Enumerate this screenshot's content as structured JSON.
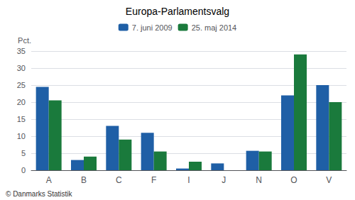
{
  "chart_data": {
    "type": "bar",
    "title": "Europa-Parlamentsvalg",
    "categories": [
      "A",
      "B",
      "C",
      "F",
      "I",
      "J",
      "N",
      "O",
      "V"
    ],
    "series": [
      {
        "name": "7. juni 2009",
        "color": "#1f5fa6",
        "values": [
          24.5,
          3.0,
          13.0,
          11.0,
          0.5,
          2.0,
          5.7,
          22.0,
          25.0
        ]
      },
      {
        "name": "25. maj 2014",
        "color": "#1a7a3c",
        "values": [
          20.5,
          4.0,
          9.0,
          5.5,
          2.5,
          0.0,
          5.5,
          34.0,
          20.0
        ]
      }
    ],
    "ylabel": "Pct.",
    "footnote": "© Danmarks Statistik",
    "ylim": [
      0,
      35
    ],
    "yticks": [
      0,
      5,
      10,
      15,
      20,
      25,
      30,
      35
    ],
    "grid": true,
    "legend": "top"
  }
}
